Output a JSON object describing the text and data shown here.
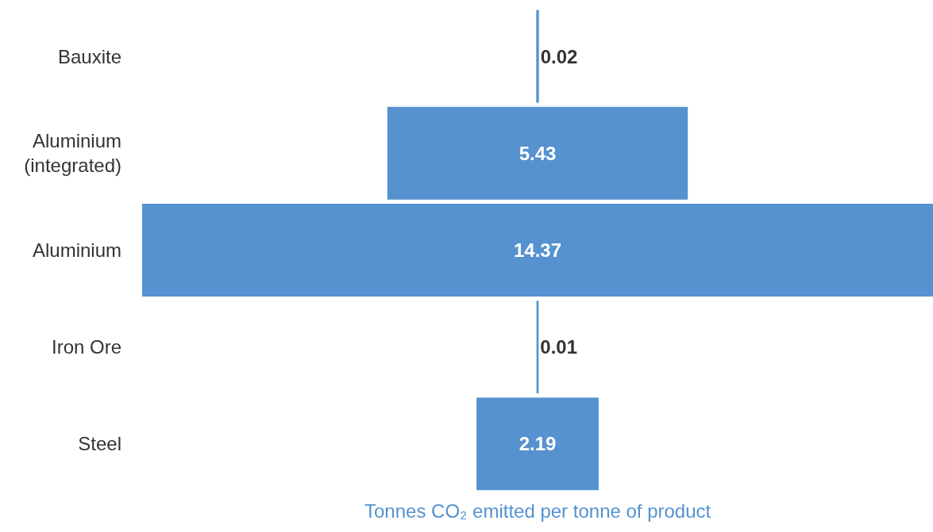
{
  "chart_data": {
    "type": "other",
    "categories": [
      "Bauxite",
      "Aluminium\n(integrated)",
      "Aluminium",
      "Iron Ore",
      "Steel"
    ],
    "values": [
      0.02,
      5.43,
      14.37,
      0.01,
      2.19
    ],
    "color": "#5592cf",
    "xlabel": "Tonnes CO₂ emitted per tonne of product",
    "data_labels": true
  }
}
